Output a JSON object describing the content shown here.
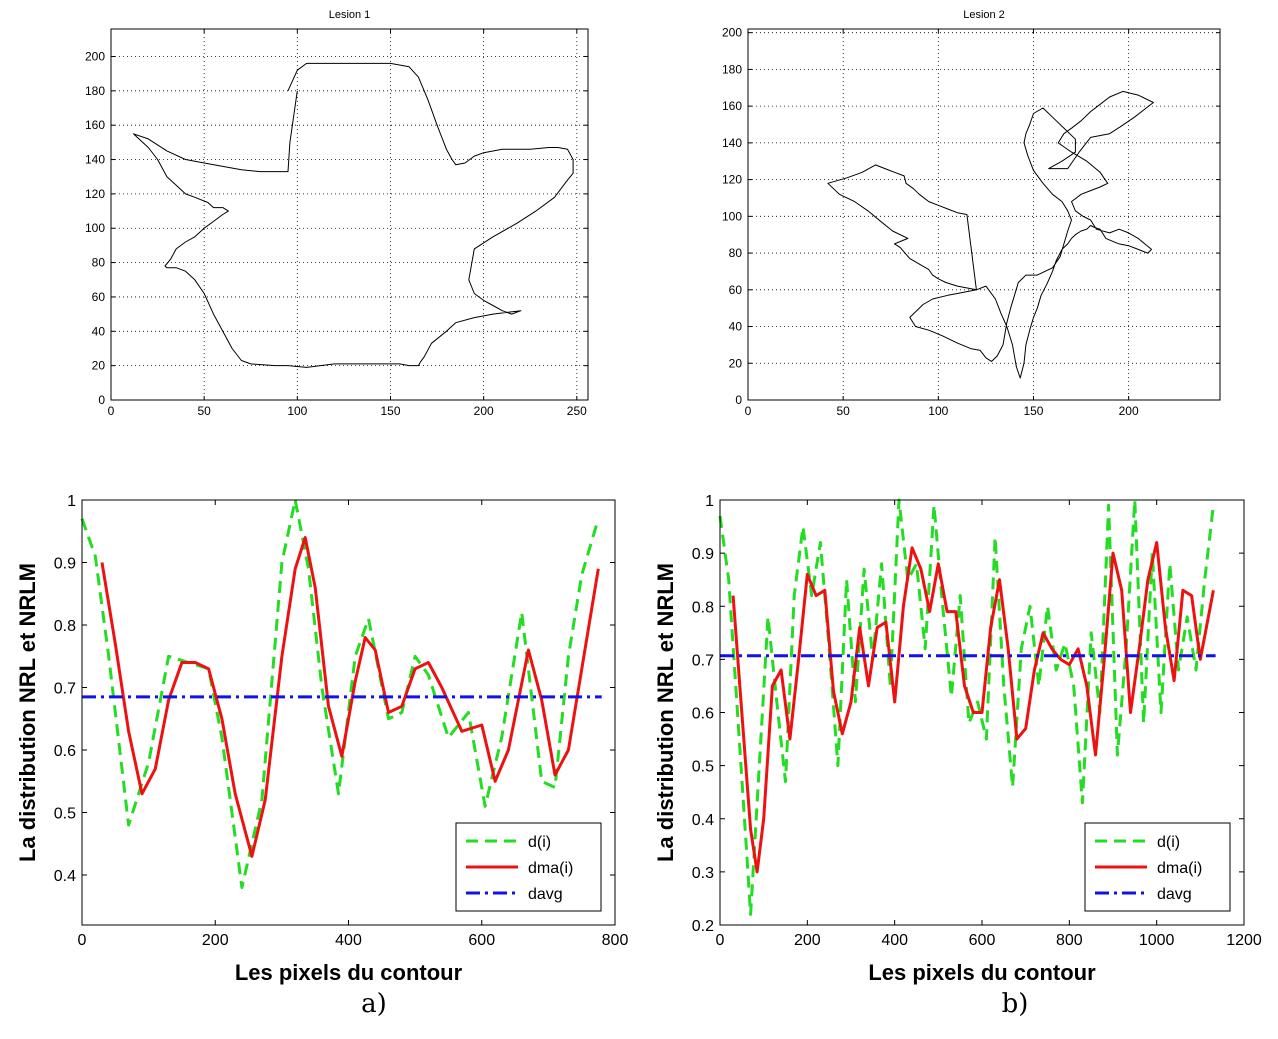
{
  "captions": [
    "a)",
    "b)"
  ],
  "chart_data": [
    {
      "type": "line",
      "title": "Lesion 1",
      "xlabel": "",
      "ylabel": "",
      "xlim": [
        0,
        256
      ],
      "ylim": [
        0,
        216
      ],
      "xticks": [
        0,
        50,
        100,
        150,
        200,
        250
      ],
      "yticks": [
        0,
        20,
        40,
        60,
        80,
        100,
        120,
        140,
        160,
        180,
        200
      ],
      "grid": true,
      "series": [
        {
          "color": "#000000",
          "style": "solid",
          "x": [
            95,
            100,
            105,
            120,
            135,
            150,
            160,
            165,
            170,
            175,
            180,
            183,
            185,
            190,
            195,
            200,
            210,
            215,
            225,
            235,
            240,
            245,
            248,
            248,
            245,
            238,
            228,
            218,
            205,
            195,
            192,
            195,
            200,
            205,
            210,
            215,
            220,
            205,
            195,
            185,
            180,
            172,
            170,
            168,
            166,
            165,
            160,
            155,
            140,
            120,
            105,
            95,
            88,
            75,
            70,
            65,
            60,
            55,
            50,
            45,
            40,
            35,
            30,
            29,
            32,
            35,
            40,
            45,
            50,
            55,
            60,
            63,
            60,
            55,
            52,
            45,
            40,
            35,
            30,
            25,
            20,
            15,
            12,
            20,
            30,
            40,
            50,
            60,
            70,
            80,
            88,
            95,
            96,
            98,
            100
          ],
          "y": [
            180,
            192,
            196,
            196,
            196,
            196,
            194,
            188,
            175,
            160,
            146,
            140,
            137,
            138,
            142,
            144,
            146,
            146,
            146,
            147,
            147,
            146,
            140,
            132,
            128,
            118,
            110,
            103,
            95,
            88,
            70,
            62,
            58,
            55,
            52,
            50,
            52,
            50,
            48,
            45,
            40,
            33,
            29,
            25,
            22,
            20,
            20,
            21,
            21,
            21,
            19,
            20,
            20,
            21,
            23,
            30,
            40,
            50,
            62,
            70,
            75,
            77,
            77,
            78,
            82,
            88,
            92,
            95,
            100,
            104,
            108,
            110,
            112,
            112,
            115,
            118,
            120,
            125,
            130,
            140,
            147,
            152,
            155,
            152,
            145,
            140,
            138,
            136,
            134,
            133,
            133,
            133,
            150,
            165,
            180
          ]
        }
      ]
    },
    {
      "type": "line",
      "title": "Lesion 2",
      "xlabel": "",
      "ylabel": "",
      "xlim": [
        0,
        248
      ],
      "ylim": [
        0,
        202
      ],
      "xticks": [
        0,
        50,
        100,
        150,
        200
      ],
      "yticks": [
        0,
        20,
        40,
        60,
        80,
        100,
        120,
        140,
        160,
        180,
        200
      ],
      "grid": true,
      "series": [
        {
          "color": "#000000",
          "style": "solid",
          "x": [
            120,
            125,
            130,
            133,
            136,
            139,
            141,
            143,
            145,
            146,
            148,
            150,
            152,
            154,
            157,
            160,
            162,
            165,
            168,
            170,
            172,
            175,
            178,
            180,
            182,
            185,
            188,
            195,
            200,
            205,
            210,
            212,
            205,
            200,
            195,
            190,
            183,
            180,
            176,
            172,
            170,
            175,
            180,
            185,
            189,
            185,
            178,
            170,
            163,
            166,
            170,
            175,
            180,
            185,
            190,
            197,
            205,
            213,
            203,
            196,
            190,
            180,
            177,
            174,
            168,
            158,
            165,
            172,
            172,
            162,
            155,
            150,
            148,
            146,
            145,
            147,
            150,
            155,
            160,
            165,
            168,
            170,
            168,
            166,
            164,
            160,
            152,
            146,
            142,
            140,
            138,
            136,
            134,
            131,
            128,
            125,
            122,
            117,
            110,
            102,
            95,
            88,
            85,
            92,
            97,
            105,
            110,
            120,
            110,
            104,
            100,
            97,
            95,
            90,
            85,
            80,
            77,
            84,
            76,
            70,
            63,
            56,
            48,
            42,
            52,
            60,
            67,
            72,
            77,
            82,
            83,
            87,
            90,
            95,
            100,
            105,
            110,
            115,
            120
          ],
          "y": [
            60,
            62,
            55,
            47,
            40,
            30,
            18,
            12,
            20,
            30,
            38,
            45,
            50,
            57,
            63,
            70,
            76,
            82,
            85,
            88,
            90,
            92,
            93,
            95,
            94,
            93,
            88,
            85,
            84,
            82,
            80,
            82,
            88,
            91,
            93,
            91,
            93,
            98,
            100,
            103,
            108,
            112,
            114,
            116,
            118,
            124,
            130,
            135,
            140,
            145,
            148,
            152,
            157,
            161,
            165,
            168,
            166,
            162,
            154,
            149,
            145,
            143,
            139,
            135,
            126,
            126,
            130,
            135,
            142,
            152,
            159,
            156,
            150,
            145,
            140,
            133,
            125,
            118,
            112,
            108,
            103,
            98,
            92,
            85,
            78,
            72,
            68,
            68,
            64,
            57,
            50,
            42,
            30,
            24,
            21,
            23,
            27,
            28,
            31,
            35,
            38,
            40,
            45,
            52,
            55,
            57,
            58,
            60,
            62,
            64,
            66,
            68,
            71,
            74,
            77,
            83,
            85,
            88,
            92,
            97,
            103,
            108,
            112,
            118,
            121,
            124,
            128,
            126,
            124,
            122,
            118,
            115,
            112,
            108,
            106,
            104,
            102,
            101,
            60
          ]
        }
      ]
    },
    {
      "type": "line",
      "title": "",
      "xlabel": "Les pixels du contour",
      "ylabel": "La distribution NRL et NRLM",
      "xlim": [
        0,
        800
      ],
      "ylim": [
        0.32,
        1.0
      ],
      "xticks": [
        0,
        200,
        400,
        600,
        800
      ],
      "yticks": [
        0.4,
        0.5,
        0.6,
        0.7,
        0.8,
        0.9,
        1
      ],
      "grid": false,
      "legend": "bottom-right",
      "series": [
        {
          "name": "d(i)",
          "color": "#22dd22",
          "style": "dashed",
          "x": [
            0,
            20,
            40,
            70,
            100,
            130,
            160,
            190,
            210,
            240,
            270,
            300,
            320,
            340,
            360,
            385,
            410,
            430,
            460,
            480,
            500,
            520,
            550,
            580,
            605,
            630,
            660,
            690,
            710,
            730,
            750,
            775
          ],
          "y": [
            0.97,
            0.91,
            0.75,
            0.48,
            0.58,
            0.75,
            0.74,
            0.73,
            0.62,
            0.38,
            0.52,
            0.9,
            1.0,
            0.89,
            0.7,
            0.53,
            0.75,
            0.81,
            0.65,
            0.66,
            0.75,
            0.72,
            0.62,
            0.66,
            0.51,
            0.62,
            0.82,
            0.55,
            0.54,
            0.75,
            0.88,
            0.97
          ]
        },
        {
          "name": "dma(i)",
          "color": "#ee1111",
          "style": "solid",
          "x": [
            30,
            50,
            70,
            90,
            110,
            130,
            150,
            170,
            190,
            210,
            230,
            255,
            275,
            300,
            320,
            335,
            350,
            370,
            390,
            410,
            425,
            440,
            460,
            480,
            500,
            520,
            540,
            570,
            600,
            620,
            640,
            670,
            690,
            710,
            730,
            775
          ],
          "y": [
            0.9,
            0.77,
            0.63,
            0.53,
            0.57,
            0.68,
            0.74,
            0.74,
            0.73,
            0.65,
            0.53,
            0.43,
            0.52,
            0.75,
            0.89,
            0.94,
            0.86,
            0.67,
            0.59,
            0.71,
            0.78,
            0.76,
            0.66,
            0.67,
            0.73,
            0.74,
            0.7,
            0.63,
            0.64,
            0.55,
            0.6,
            0.76,
            0.68,
            0.56,
            0.6,
            0.89
          ]
        },
        {
          "name": "davg",
          "color": "#1111ee",
          "style": "dashdot",
          "x": [
            0,
            780
          ],
          "y": [
            0.685,
            0.685
          ]
        }
      ]
    },
    {
      "type": "line",
      "title": "",
      "xlabel": "Les pixels du contour",
      "ylabel": "La distribution NRL et NRLM",
      "xlim": [
        0,
        1200
      ],
      "ylim": [
        0.2,
        1.0
      ],
      "xticks": [
        0,
        200,
        400,
        600,
        800,
        1000,
        1200
      ],
      "yticks": [
        0.2,
        0.3,
        0.4,
        0.5,
        0.6,
        0.7,
        0.8,
        0.9,
        1
      ],
      "grid": false,
      "legend": "bottom-right",
      "series": [
        {
          "name": "d(i)",
          "color": "#22dd22",
          "style": "dashed",
          "x": [
            0,
            20,
            40,
            60,
            70,
            90,
            110,
            130,
            150,
            170,
            190,
            210,
            230,
            250,
            270,
            290,
            310,
            330,
            350,
            370,
            390,
            410,
            430,
            450,
            470,
            490,
            510,
            530,
            550,
            570,
            590,
            610,
            630,
            650,
            670,
            690,
            710,
            730,
            750,
            770,
            790,
            810,
            830,
            850,
            870,
            890,
            910,
            930,
            950,
            970,
            990,
            1010,
            1030,
            1050,
            1070,
            1090,
            1110,
            1130
          ],
          "y": [
            0.97,
            0.85,
            0.6,
            0.35,
            0.22,
            0.5,
            0.78,
            0.62,
            0.47,
            0.82,
            0.95,
            0.82,
            0.92,
            0.72,
            0.5,
            0.85,
            0.62,
            0.87,
            0.7,
            0.88,
            0.65,
            1.0,
            0.85,
            0.88,
            0.72,
            0.99,
            0.8,
            0.63,
            0.82,
            0.58,
            0.62,
            0.55,
            0.93,
            0.65,
            0.46,
            0.72,
            0.8,
            0.65,
            0.8,
            0.68,
            0.73,
            0.65,
            0.43,
            0.75,
            0.6,
            0.99,
            0.52,
            0.72,
            1.0,
            0.58,
            0.9,
            0.6,
            0.88,
            0.68,
            0.78,
            0.68,
            0.85,
            0.99
          ]
        },
        {
          "name": "dma(i)",
          "color": "#ee1111",
          "style": "solid",
          "x": [
            30,
            50,
            70,
            85,
            100,
            120,
            140,
            160,
            180,
            200,
            220,
            240,
            260,
            280,
            300,
            320,
            340,
            360,
            380,
            400,
            420,
            440,
            460,
            480,
            500,
            520,
            540,
            560,
            580,
            600,
            620,
            640,
            660,
            680,
            700,
            720,
            740,
            760,
            780,
            800,
            820,
            840,
            860,
            880,
            900,
            920,
            940,
            960,
            980,
            1000,
            1020,
            1040,
            1060,
            1080,
            1100,
            1130
          ],
          "y": [
            0.82,
            0.6,
            0.38,
            0.3,
            0.4,
            0.65,
            0.68,
            0.55,
            0.7,
            0.86,
            0.82,
            0.83,
            0.64,
            0.56,
            0.62,
            0.76,
            0.65,
            0.76,
            0.77,
            0.62,
            0.8,
            0.91,
            0.87,
            0.79,
            0.88,
            0.79,
            0.79,
            0.65,
            0.6,
            0.6,
            0.76,
            0.85,
            0.72,
            0.55,
            0.57,
            0.68,
            0.75,
            0.72,
            0.7,
            0.69,
            0.72,
            0.65,
            0.52,
            0.7,
            0.9,
            0.83,
            0.6,
            0.72,
            0.85,
            0.92,
            0.76,
            0.66,
            0.83,
            0.82,
            0.7,
            0.83
          ]
        },
        {
          "name": "davg",
          "color": "#1111ee",
          "style": "dashdot",
          "x": [
            0,
            1135
          ],
          "y": [
            0.707,
            0.707
          ]
        }
      ]
    }
  ]
}
